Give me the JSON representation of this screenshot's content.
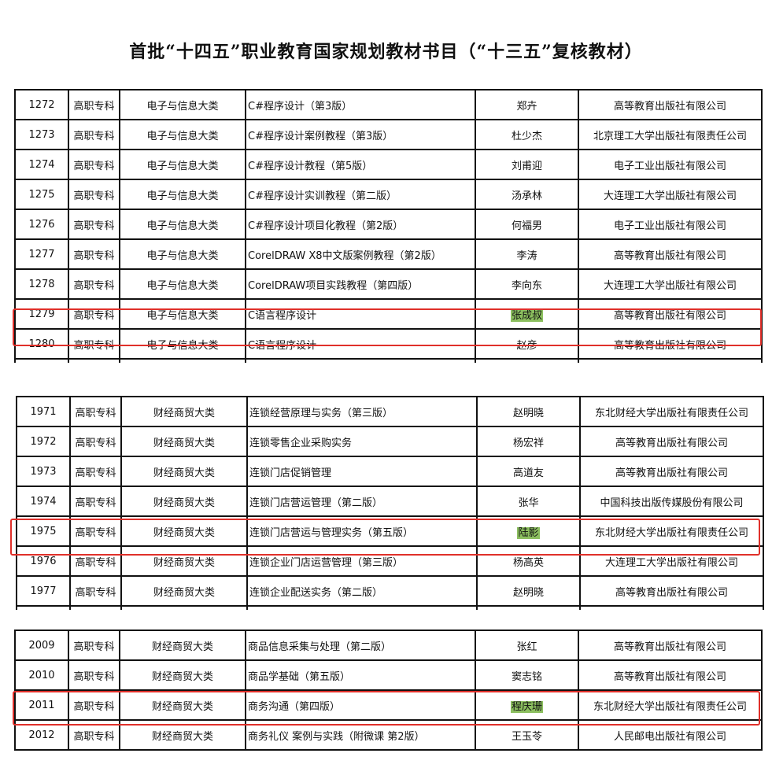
{
  "title": "首批“十四五”职业教育国家规划教材书目（“十三五”复核教材）",
  "accent_colors": {
    "highlight_box": "#e0302a",
    "author_highlight": "#8cbf5f"
  },
  "tables": [
    {
      "rows": [
        {
          "id": "1272",
          "level": "高职专科",
          "category": "电子与信息大类",
          "book": "C#程序设计（第3版）",
          "author": "郑卉",
          "publisher": "高等教育出版社有限公司"
        },
        {
          "id": "1273",
          "level": "高职专科",
          "category": "电子与信息大类",
          "book": "C#程序设计案例教程（第3版）",
          "author": "杜少杰",
          "publisher": "北京理工大学出版社有限责任公司"
        },
        {
          "id": "1274",
          "level": "高职专科",
          "category": "电子与信息大类",
          "book": "C#程序设计教程（第5版）",
          "author": "刘甫迎",
          "publisher": "电子工业出版社有限公司"
        },
        {
          "id": "1275",
          "level": "高职专科",
          "category": "电子与信息大类",
          "book": "C#程序设计实训教程（第二版）",
          "author": "汤承林",
          "publisher": "大连理工大学出版社有限公司"
        },
        {
          "id": "1276",
          "level": "高职专科",
          "category": "电子与信息大类",
          "book": "C#程序设计项目化教程（第2版）",
          "author": "何福男",
          "publisher": "电子工业出版社有限公司"
        },
        {
          "id": "1277",
          "level": "高职专科",
          "category": "电子与信息大类",
          "book": "CorelDRAW X8中文版案例教程（第2版）",
          "author": "李涛",
          "publisher": "高等教育出版社有限公司"
        },
        {
          "id": "1278",
          "level": "高职专科",
          "category": "电子与信息大类",
          "book": "CorelDRAW项目实践教程（第四版）",
          "author": "李向东",
          "publisher": "大连理工大学出版社有限公司"
        },
        {
          "id": "1279",
          "level": "高职专科",
          "category": "电子与信息大类",
          "book": "C语言程序设计",
          "author": "张成叔",
          "publisher": "高等教育出版社有限公司",
          "highlighted": true
        },
        {
          "id": "1280",
          "level": "高职专科",
          "category": "电子与信息大类",
          "book": "C语言程序设计",
          "author": "赵彦",
          "publisher": "高等教育出版社有限公司"
        }
      ]
    },
    {
      "rows": [
        {
          "id": "1971",
          "level": "高职专科",
          "category": "财经商贸大类",
          "book": "连锁经营原理与实务（第三版）",
          "author": "赵明晓",
          "publisher": "东北财经大学出版社有限责任公司"
        },
        {
          "id": "1972",
          "level": "高职专科",
          "category": "财经商贸大类",
          "book": "连锁零售企业采购实务",
          "author": "杨宏祥",
          "publisher": "高等教育出版社有限公司"
        },
        {
          "id": "1973",
          "level": "高职专科",
          "category": "财经商贸大类",
          "book": "连锁门店促销管理",
          "author": "高道友",
          "publisher": "高等教育出版社有限公司"
        },
        {
          "id": "1974",
          "level": "高职专科",
          "category": "财经商贸大类",
          "book": "连锁门店营运管理（第二版）",
          "author": "张华",
          "publisher": "中国科技出版传媒股份有限公司"
        },
        {
          "id": "1975",
          "level": "高职专科",
          "category": "财经商贸大类",
          "book": "连锁门店营运与管理实务（第五版）",
          "author": "陆影",
          "publisher": "东北财经大学出版社有限责任公司",
          "highlighted": true
        },
        {
          "id": "1976",
          "level": "高职专科",
          "category": "财经商贸大类",
          "book": "连锁企业门店运营管理（第三版）",
          "author": "杨高英",
          "publisher": "大连理工大学出版社有限公司"
        },
        {
          "id": "1977",
          "level": "高职专科",
          "category": "财经商贸大类",
          "book": "连锁企业配送实务（第二版）",
          "author": "赵明晓",
          "publisher": "高等教育出版社有限公司"
        }
      ]
    },
    {
      "rows": [
        {
          "id": "2009",
          "level": "高职专科",
          "category": "财经商贸大类",
          "book": "商品信息采集与处理（第二版）",
          "author": "张红",
          "publisher": "高等教育出版社有限公司"
        },
        {
          "id": "2010",
          "level": "高职专科",
          "category": "财经商贸大类",
          "book": "商品学基础（第五版）",
          "author": "窦志铭",
          "publisher": "高等教育出版社有限公司"
        },
        {
          "id": "2011",
          "level": "高职专科",
          "category": "财经商贸大类",
          "book": "商务沟通（第四版）",
          "author": "程庆珊",
          "publisher": "东北财经大学出版社有限责任公司",
          "highlighted": true
        },
        {
          "id": "2012",
          "level": "高职专科",
          "category": "财经商贸大类",
          "book": "商务礼仪  案例与实践（附微课 第2版）",
          "author": "王玉苓",
          "publisher": "人民邮电出版社有限公司"
        }
      ]
    }
  ]
}
